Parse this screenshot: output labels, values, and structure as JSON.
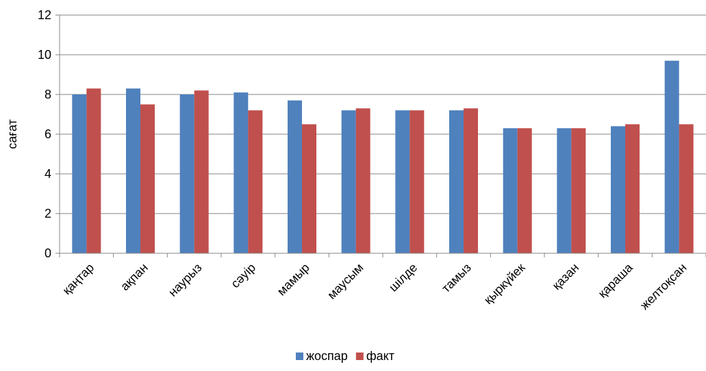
{
  "chart_data": {
    "type": "bar",
    "title": "",
    "xlabel": "",
    "ylabel": "сағат",
    "ylim": [
      0,
      12
    ],
    "yticks": [
      0,
      2,
      4,
      6,
      8,
      10,
      12
    ],
    "grid": true,
    "legend_position": "bottom",
    "categories": [
      "қаңтар",
      "ақпан",
      "наурыз",
      "сәуір",
      "мамыр",
      "маусым",
      "шілде",
      "тамыз",
      "қыркүйек",
      "қазан",
      "қараша",
      "желтоқсан"
    ],
    "series": [
      {
        "name": "жоспар",
        "color": "#4F81BD",
        "values": [
          8.0,
          8.3,
          8.0,
          8.1,
          7.7,
          7.2,
          7.2,
          7.2,
          6.3,
          6.3,
          6.4,
          9.7
        ]
      },
      {
        "name": "факт",
        "color": "#C0504D",
        "values": [
          8.3,
          7.5,
          8.2,
          7.2,
          6.5,
          7.3,
          7.2,
          7.3,
          6.3,
          6.3,
          6.5,
          6.5
        ]
      }
    ]
  }
}
